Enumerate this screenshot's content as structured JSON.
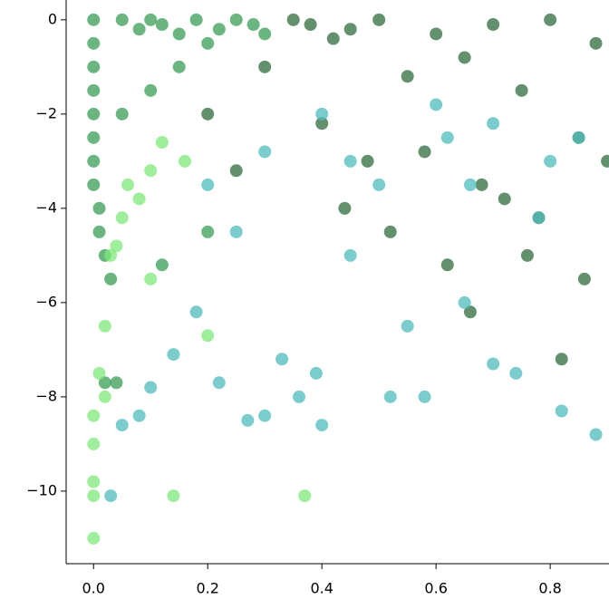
{
  "chart_data": {
    "type": "scatter",
    "xlim": [
      -0.048,
      0.903
    ],
    "ylim": [
      -11.54,
      0.42
    ],
    "xticks": [
      {
        "value": 0,
        "label": "0.0"
      },
      {
        "value": 0.2,
        "label": "0.2"
      },
      {
        "value": 0.4,
        "label": "0.4"
      },
      {
        "value": 0.6,
        "label": "0.6"
      },
      {
        "value": 0.8,
        "label": "0.8"
      }
    ],
    "yticks": [
      {
        "value": -10,
        "label": "−10"
      },
      {
        "value": -8,
        "label": "−8"
      },
      {
        "value": -6,
        "label": "−6"
      },
      {
        "value": -4,
        "label": "−4"
      },
      {
        "value": -2,
        "label": "−2"
      },
      0
    ],
    "series": [
      {
        "color": "#2f6b3c",
        "x": [
          0.35,
          0.38,
          0.42,
          0.45,
          0.5,
          0.55,
          0.6,
          0.65,
          0.7,
          0.75,
          0.8,
          0.85,
          0.88,
          0.4,
          0.48,
          0.58,
          0.68,
          0.78,
          0.86,
          0.3,
          0.52,
          0.62,
          0.72,
          0.82,
          0.2,
          0.25,
          0.44,
          0.66,
          0.76,
          0.9
        ],
        "values": [
          0,
          -0.1,
          -0.4,
          -0.2,
          0,
          -1.2,
          -0.3,
          -0.8,
          -0.1,
          -1.5,
          0,
          -2.5,
          -0.5,
          -2.2,
          -3,
          -2.8,
          -3.5,
          -4.2,
          -5.5,
          -1,
          -4.5,
          -5.2,
          -3.8,
          -7.2,
          -2,
          -3.2,
          -4,
          -6.2,
          -5,
          -3
        ]
      },
      {
        "color": "#3a9e55",
        "x": [
          0,
          0,
          0,
          0,
          0,
          0,
          0,
          0,
          0.01,
          0.01,
          0.02,
          0.03,
          0.05,
          0.08,
          0.1,
          0.12,
          0.15,
          0.18,
          0.2,
          0.22,
          0.25,
          0.28,
          0.3,
          0.05,
          0.1,
          0.15,
          0.02,
          0.04,
          0.12,
          0.2
        ],
        "values": [
          0,
          -0.5,
          -1,
          -1.5,
          -2,
          -2.5,
          -3,
          -3.5,
          -4,
          -4.5,
          -5,
          -5.5,
          0,
          -0.2,
          0,
          -0.1,
          -0.3,
          0,
          -0.5,
          -0.2,
          0,
          -0.1,
          -0.3,
          -2,
          -1.5,
          -1,
          -7.7,
          -7.7,
          -5.2,
          -4.5
        ]
      },
      {
        "color": "#7ee87a",
        "x": [
          0,
          0,
          0,
          0,
          0,
          0.01,
          0.02,
          0.03,
          0.05,
          0.08,
          0.1,
          0.12,
          0.14,
          0.16,
          0.2,
          0.37,
          0.02,
          0.04,
          0.06,
          0.1
        ],
        "values": [
          -11,
          -10.1,
          -9.8,
          -9,
          -8.4,
          -7.5,
          -6.5,
          -5,
          -4.2,
          -3.8,
          -3.2,
          -2.6,
          -10.1,
          -3,
          -6.7,
          -10.1,
          -8,
          -4.8,
          -3.5,
          -5.5
        ]
      },
      {
        "color": "#4fbcbc",
        "x": [
          0.05,
          0.08,
          0.1,
          0.14,
          0.18,
          0.22,
          0.27,
          0.3,
          0.33,
          0.36,
          0.39,
          0.4,
          0.45,
          0.52,
          0.55,
          0.58,
          0.62,
          0.66,
          0.7,
          0.74,
          0.78,
          0.82,
          0.88,
          0.3,
          0.4,
          0.5,
          0.6,
          0.7,
          0.8,
          0.85,
          0.2,
          0.25,
          0.45,
          0.65,
          0.03
        ],
        "values": [
          -8.6,
          -8.4,
          -7.8,
          -7.1,
          -6.2,
          -7.7,
          -8.5,
          -8.4,
          -7.2,
          -8,
          -7.5,
          -8.6,
          -3,
          -8,
          -6.5,
          -8,
          -2.5,
          -3.5,
          -7.3,
          -7.5,
          -4.2,
          -8.3,
          -8.8,
          -2.8,
          -2,
          -3.5,
          -1.8,
          -2.2,
          -3,
          -2.5,
          -3.5,
          -4.5,
          -5,
          -6,
          -10.1
        ]
      }
    ]
  }
}
